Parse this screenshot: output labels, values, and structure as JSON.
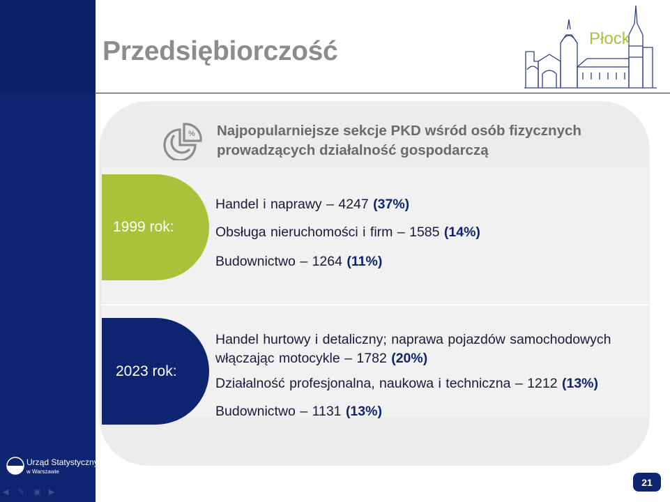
{
  "slide": {
    "title": "Przedsiębiorczość",
    "city": "Płock",
    "heading_line1": "Najpopularniejsze sekcje PKD wśród osób fizycznych",
    "heading_line2": "prowadzących działalność gospodarczą",
    "page_number": "21"
  },
  "sections": [
    {
      "year_label": "1999 rok:",
      "items": [
        {
          "text": "Handel i naprawy – 4247 ",
          "pct": "(37%)"
        },
        {
          "text": "Obsługa nieruchomości i firm – 1585 ",
          "pct": "(14%)"
        },
        {
          "text": "Budownictwo – 1264 ",
          "pct": "(11%)"
        }
      ]
    },
    {
      "year_label": "2023 rok:",
      "items": [
        {
          "text_line1": "Handel hurtowy i detaliczny; naprawa pojazdów samochodowych",
          "text": "włączając motocykle – 1782 ",
          "pct": "(20%)"
        },
        {
          "text": "Działalność profesjonalna, naukowa i techniczna – 1212 ",
          "pct": "(13%)"
        },
        {
          "text": "Budownictwo – 1131 ",
          "pct": "(13%)"
        }
      ]
    }
  ],
  "logo": {
    "name": "Urząd Statystyczny",
    "sub": "w Warszawie"
  },
  "nav": {
    "back_icon": "arrow-left-icon",
    "edit_icon": "pencil-icon",
    "menu_icon": "menu-icon",
    "forward_icon": "arrow-right-icon"
  },
  "colors": {
    "navy": "#0f2470",
    "green": "#a8c33a",
    "title_gray": "#8c8c8c"
  }
}
